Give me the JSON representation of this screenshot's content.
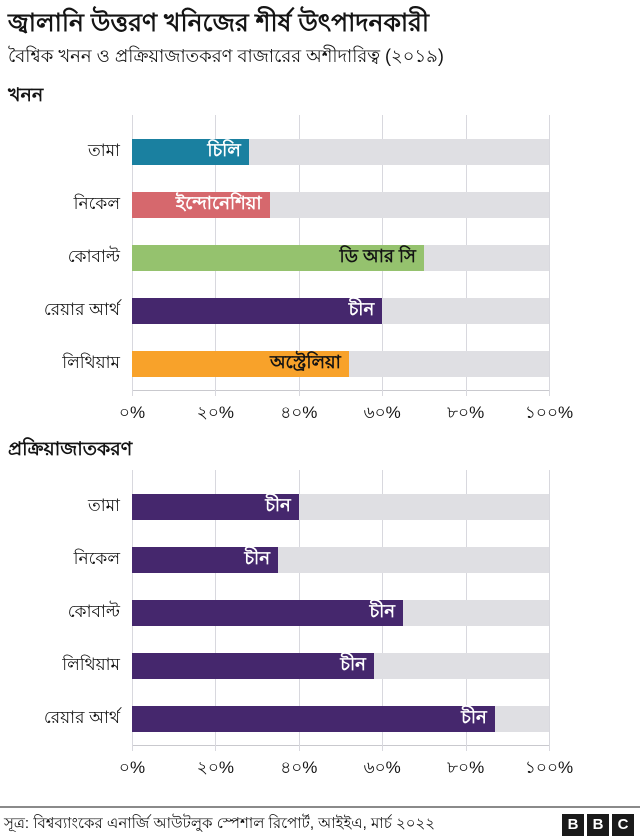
{
  "header": {
    "title": "জ্বালানি উত্তরণ খনিজের শীর্ষ উৎপাদনকারী",
    "subtitle": "বৈশ্বিক খনন ও প্রক্রিয়াজাতকরণ বাজারের অশীদারিত্ব (২০১৯)"
  },
  "colors": {
    "teal": "#1A80A0",
    "red": "#D6686D",
    "green": "#95C26E",
    "purple": "#45276D",
    "orange": "#F8A22A",
    "track": "#DFDFE3",
    "gridline": "#D8D8DE",
    "text": "#141414"
  },
  "chart_data": [
    {
      "type": "bar",
      "orientation": "horizontal",
      "title": "খনন",
      "xlim": [
        0,
        100
      ],
      "tick_values": [
        0,
        20,
        40,
        60,
        80,
        100
      ],
      "ticks": [
        "০%",
        "২০%",
        "৪০%",
        "৬০%",
        "৮০%",
        "১০০%"
      ],
      "categories": [
        "তামা",
        "নিকেল",
        "কোবাল্ট",
        "রেয়ার আর্থ",
        "লিথিয়াম"
      ],
      "bars": [
        {
          "category": "তামা",
          "label": "চিলি",
          "value": 28,
          "color": "#1A80A0",
          "text_color": "#ffffff"
        },
        {
          "category": "নিকেল",
          "label": "ইন্দোনেশিয়া",
          "value": 33,
          "color": "#D6686D",
          "text_color": "#ffffff"
        },
        {
          "category": "কোবাল্ট",
          "label": "ডি আর সি",
          "value": 70,
          "color": "#95C26E",
          "text_color": "#141414"
        },
        {
          "category": "রেয়ার আর্থ",
          "label": "চীন",
          "value": 60,
          "color": "#45276D",
          "text_color": "#ffffff"
        },
        {
          "category": "লিথিয়াম",
          "label": "অস্ট্রেলিয়া",
          "value": 52,
          "color": "#F8A22A",
          "text_color": "#141414"
        }
      ]
    },
    {
      "type": "bar",
      "orientation": "horizontal",
      "title": "প্রক্রিয়াজাতকরণ",
      "xlim": [
        0,
        100
      ],
      "tick_values": [
        0,
        20,
        40,
        60,
        80,
        100
      ],
      "ticks": [
        "০%",
        "২০%",
        "৪০%",
        "৬০%",
        "৮০%",
        "১০০%"
      ],
      "categories": [
        "তামা",
        "নিকেল",
        "কোবাল্ট",
        "লিথিয়াম",
        "রেয়ার আর্থ"
      ],
      "bars": [
        {
          "category": "তামা",
          "label": "চীন",
          "value": 40,
          "color": "#45276D",
          "text_color": "#ffffff"
        },
        {
          "category": "নিকেল",
          "label": "চীন",
          "value": 35,
          "color": "#45276D",
          "text_color": "#ffffff"
        },
        {
          "category": "কোবাল্ট",
          "label": "চীন",
          "value": 65,
          "color": "#45276D",
          "text_color": "#ffffff"
        },
        {
          "category": "লিথিয়াম",
          "label": "চীন",
          "value": 58,
          "color": "#45276D",
          "text_color": "#ffffff"
        },
        {
          "category": "রেয়ার আর্থ",
          "label": "চীন",
          "value": 87,
          "color": "#45276D",
          "text_color": "#ffffff"
        }
      ]
    }
  ],
  "footer": {
    "source": "সূত্র: বিশ্বব্যাংকের এনার্জি আউটলুক স্পেশাল রিপোর্ট, আইইএ, মার্চ ২০২২",
    "logo_letters": [
      "B",
      "B",
      "C"
    ]
  }
}
